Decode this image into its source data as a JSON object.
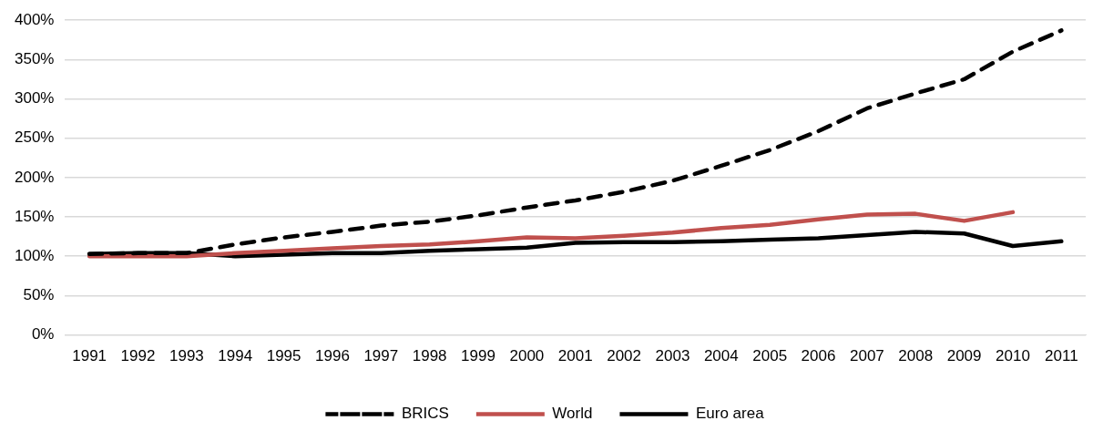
{
  "chart_data": {
    "type": "line",
    "categories": [
      "1991",
      "1992",
      "1993",
      "1994",
      "1995",
      "1996",
      "1997",
      "1998",
      "1999",
      "2000",
      "2001",
      "2002",
      "2003",
      "2004",
      "2005",
      "2006",
      "2007",
      "2008",
      "2009",
      "2010",
      "2011"
    ],
    "series": [
      {
        "name": "BRICS",
        "color": "#000000",
        "line_style": "dashed",
        "values": [
          103,
          104,
          104,
          115,
          124,
          131,
          139,
          144,
          152,
          162,
          171,
          182,
          196,
          215,
          235,
          259,
          288,
          307,
          325,
          360,
          387
        ]
      },
      {
        "name": "World",
        "color": "#c0504d",
        "line_style": "solid",
        "values": [
          100,
          100,
          100,
          104,
          107,
          110,
          113,
          115,
          119,
          124,
          123,
          126,
          130,
          136,
          140,
          147,
          153,
          154,
          145,
          156,
          null
        ]
      },
      {
        "name": "Euro area",
        "color": "#000000",
        "line_style": "solid",
        "values": [
          103,
          104,
          104,
          100,
          102,
          104,
          104,
          107,
          109,
          111,
          117,
          118,
          118,
          119,
          121,
          123,
          127,
          131,
          129,
          113,
          119
        ]
      }
    ],
    "ylim": [
      0,
      400
    ],
    "yticks": [
      {
        "value": 0,
        "label": "0%"
      },
      {
        "value": 50,
        "label": "50%"
      },
      {
        "value": 100,
        "label": "100%"
      },
      {
        "value": 150,
        "label": "150%"
      },
      {
        "value": 200,
        "label": "200%"
      },
      {
        "value": 250,
        "label": "250%"
      },
      {
        "value": 300,
        "label": "300%"
      },
      {
        "value": 350,
        "label": "350%"
      },
      {
        "value": 400,
        "label": "400%"
      }
    ],
    "grid": "y",
    "legend": "bottom",
    "marker": "none"
  }
}
